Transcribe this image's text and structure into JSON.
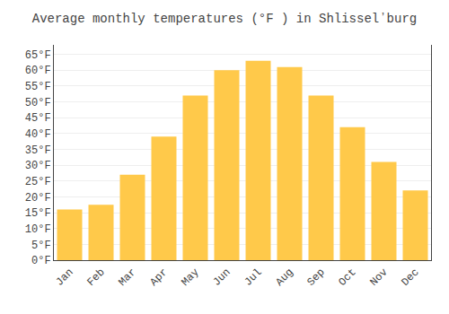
{
  "chart_data": {
    "type": "bar",
    "title": "Average monthly temperatures (°F ) in Shlisselʼburg",
    "categories": [
      "Jan",
      "Feb",
      "Mar",
      "Apr",
      "May",
      "Jun",
      "Jul",
      "Aug",
      "Sep",
      "Oct",
      "Nov",
      "Dec"
    ],
    "values": [
      16,
      17.5,
      27,
      39,
      52,
      60,
      63,
      61,
      52,
      42,
      31,
      22
    ],
    "color": "#FFC94A",
    "ylim": [
      0,
      68
    ],
    "yticks": [
      {
        "value": 0,
        "label": "0°F"
      },
      {
        "value": 5,
        "label": "5°F"
      },
      {
        "value": 10,
        "label": "10°F"
      },
      {
        "value": 15,
        "label": "15°F"
      },
      {
        "value": 20,
        "label": "20°F"
      },
      {
        "value": 25,
        "label": "25°F"
      },
      {
        "value": 30,
        "label": "30°F"
      },
      {
        "value": 35,
        "label": "35°F"
      },
      {
        "value": 40,
        "label": "40°F"
      },
      {
        "value": 45,
        "label": "45°F"
      },
      {
        "value": 50,
        "label": "50°F"
      },
      {
        "value": 55,
        "label": "55°F"
      },
      {
        "value": 60,
        "label": "60°F"
      },
      {
        "value": 65,
        "label": "65°F"
      }
    ],
    "grid": true
  }
}
